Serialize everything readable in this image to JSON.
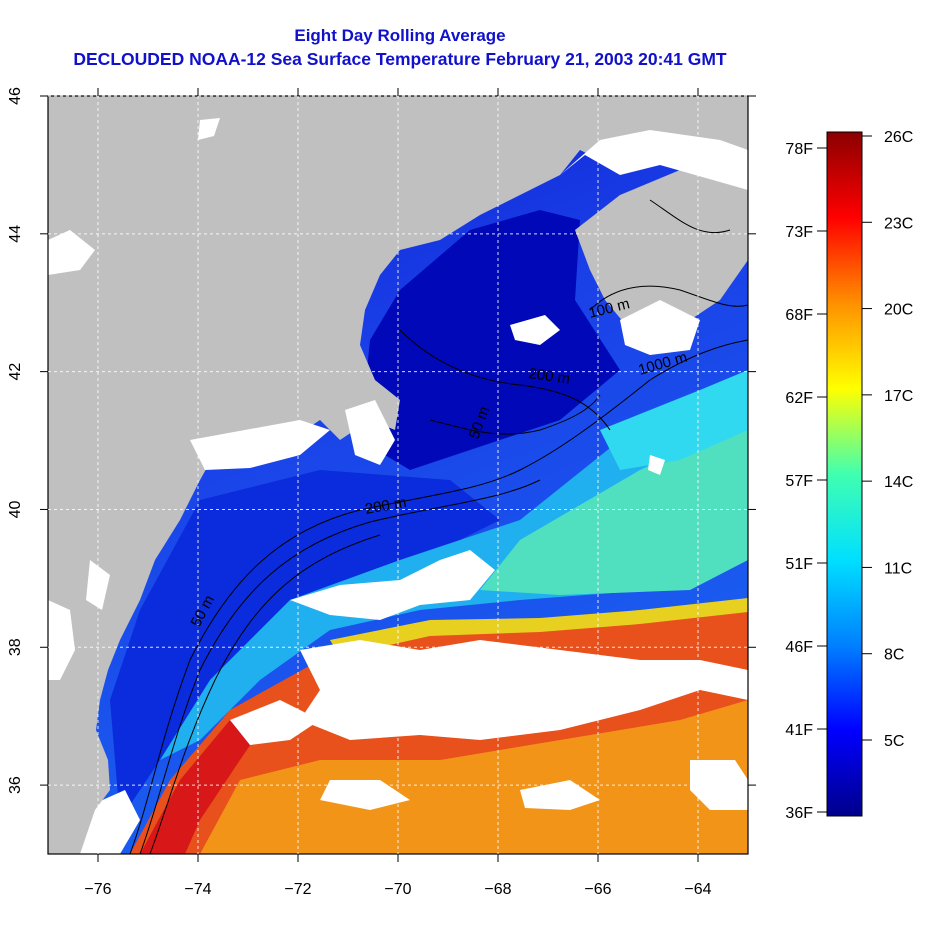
{
  "title_line1": "Eight Day Rolling Average",
  "title_line2": "DECLOUDED NOAA-12 Sea Surface Temperature February 21, 2003 20:41 GMT",
  "map": {
    "lon_range": [
      -77,
      -63
    ],
    "lat_range": [
      35,
      46
    ],
    "lon_ticks": [
      -76,
      -74,
      -72,
      -70,
      -68,
      -66,
      -64
    ],
    "lon_tick_labels": [
      "−76",
      "−74",
      "−72",
      "−70",
      "−68",
      "−66",
      "−64"
    ],
    "lat_ticks": [
      36,
      38,
      40,
      42,
      44,
      46
    ],
    "lat_tick_labels": [
      "36",
      "38",
      "40",
      "42",
      "44",
      "46"
    ],
    "contour_labels": [
      "50 m",
      "200 m",
      "50 m",
      "100 m",
      "1000 m",
      "200 m"
    ],
    "colors": {
      "land": "#c0c0c0",
      "cloud": "#ffffff",
      "grid": "#ffffff"
    }
  },
  "colorbar": {
    "celsius_labels": [
      "26C",
      "23C",
      "20C",
      "17C",
      "14C",
      "11C",
      "8C",
      "5C"
    ],
    "fahrenheit_labels": [
      "78F",
      "73F",
      "68F",
      "62F",
      "57F",
      "51F",
      "46F",
      "41F",
      "36F"
    ],
    "stops": [
      "#00008b",
      "#0000ff",
      "#0080ff",
      "#00e0ff",
      "#40ffb0",
      "#ffff00",
      "#ff9000",
      "#ff0000",
      "#8b0000"
    ]
  }
}
